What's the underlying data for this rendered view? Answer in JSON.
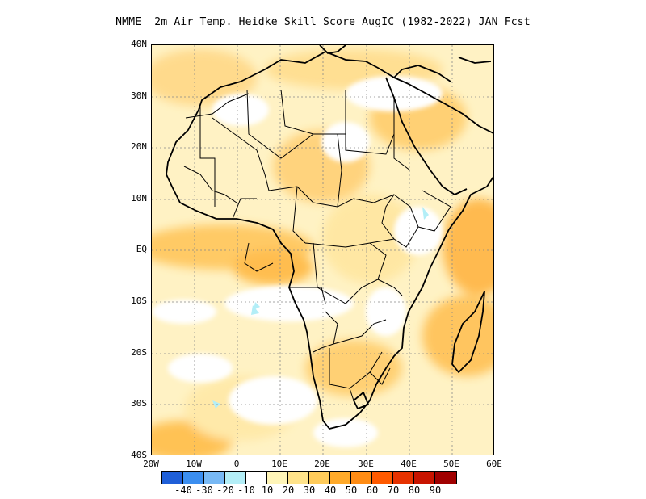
{
  "title": "NMME  2m Air Temp. Heidke Skill Score AugIC (1982-2022) JAN Fcst",
  "map": {
    "lat_labels": [
      "40N",
      "30N",
      "20N",
      "10N",
      "EQ",
      "10S",
      "20S",
      "30S",
      "40S"
    ],
    "lon_labels": [
      "20W",
      "10W",
      "0",
      "10E",
      "20E",
      "30E",
      "40E",
      "50E",
      "60E"
    ],
    "lon_range": [
      -20,
      60
    ],
    "lat_range": [
      -40,
      40
    ],
    "gridlines": "dotted",
    "region": "Africa"
  },
  "colorbar": {
    "colors": [
      "#1f5fd8",
      "#3b8ef0",
      "#78b9f5",
      "#b3eef7",
      "#ffffff",
      "#fff5b8",
      "#ffe38a",
      "#ffcb5a",
      "#ffaa2a",
      "#ff8c14",
      "#ff5a00",
      "#e63200",
      "#c81400",
      "#a00000"
    ],
    "tick_labels": [
      "-40",
      "-30",
      "-20",
      "-10",
      "10",
      "20",
      "30",
      "40",
      "50",
      "60",
      "70",
      "80",
      "90"
    ]
  }
}
